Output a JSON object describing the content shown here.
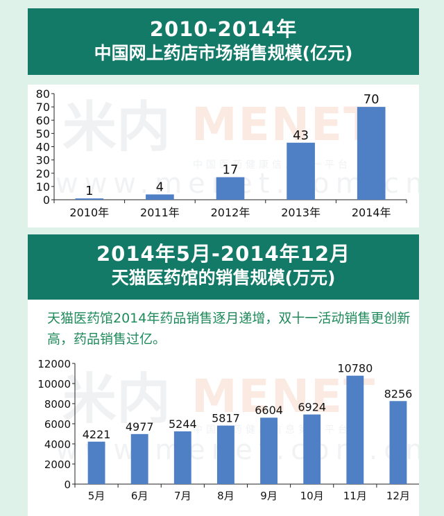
{
  "section1": {
    "title_line1": "2010-2014年",
    "title_line2": "中国网上药店市场销售规模(亿元)"
  },
  "section2": {
    "title_line1": "2014年5月-2014年12月",
    "title_line2": "天猫医药馆的销售规模(万元)",
    "description": "天猫医药馆2014年药品销售逐月递增，双十一活动销售更创新高，药品销售过亿。"
  },
  "watermark": {
    "logo_cn": "米内",
    "logo_en": "MENET",
    "tagline": "中国医药健康信息第一平台",
    "url": "www.menet.com.cn"
  },
  "colors": {
    "bar": "#4f7fc4",
    "title_bg": "#137a68",
    "description_text": "#1e8a5a",
    "page_bg": "#dff2ea"
  },
  "chart_data": [
    {
      "type": "bar",
      "categories": [
        "2010年",
        "2011年",
        "2012年",
        "2013年",
        "2014年"
      ],
      "values": [
        1,
        4,
        17,
        43,
        70
      ],
      "title": "中国网上药店市场销售规模(亿元)",
      "xlabel": "",
      "ylabel": "",
      "ylim": [
        0,
        80
      ],
      "yticks": [
        0,
        10,
        20,
        30,
        40,
        50,
        60,
        70,
        80
      ],
      "data_labels": true,
      "grid": false
    },
    {
      "type": "bar",
      "categories": [
        "5月",
        "6月",
        "7月",
        "8月",
        "9月",
        "10月",
        "11月",
        "12月"
      ],
      "values": [
        4221,
        4977,
        5244,
        5817,
        6604,
        6924,
        10780,
        8256
      ],
      "title": "天猫医药馆的销售规模(万元)",
      "xlabel": "",
      "ylabel": "",
      "ylim": [
        0,
        12000
      ],
      "yticks": [
        0,
        2000,
        4000,
        6000,
        8000,
        10000,
        12000
      ],
      "data_labels": true,
      "grid": false
    }
  ]
}
